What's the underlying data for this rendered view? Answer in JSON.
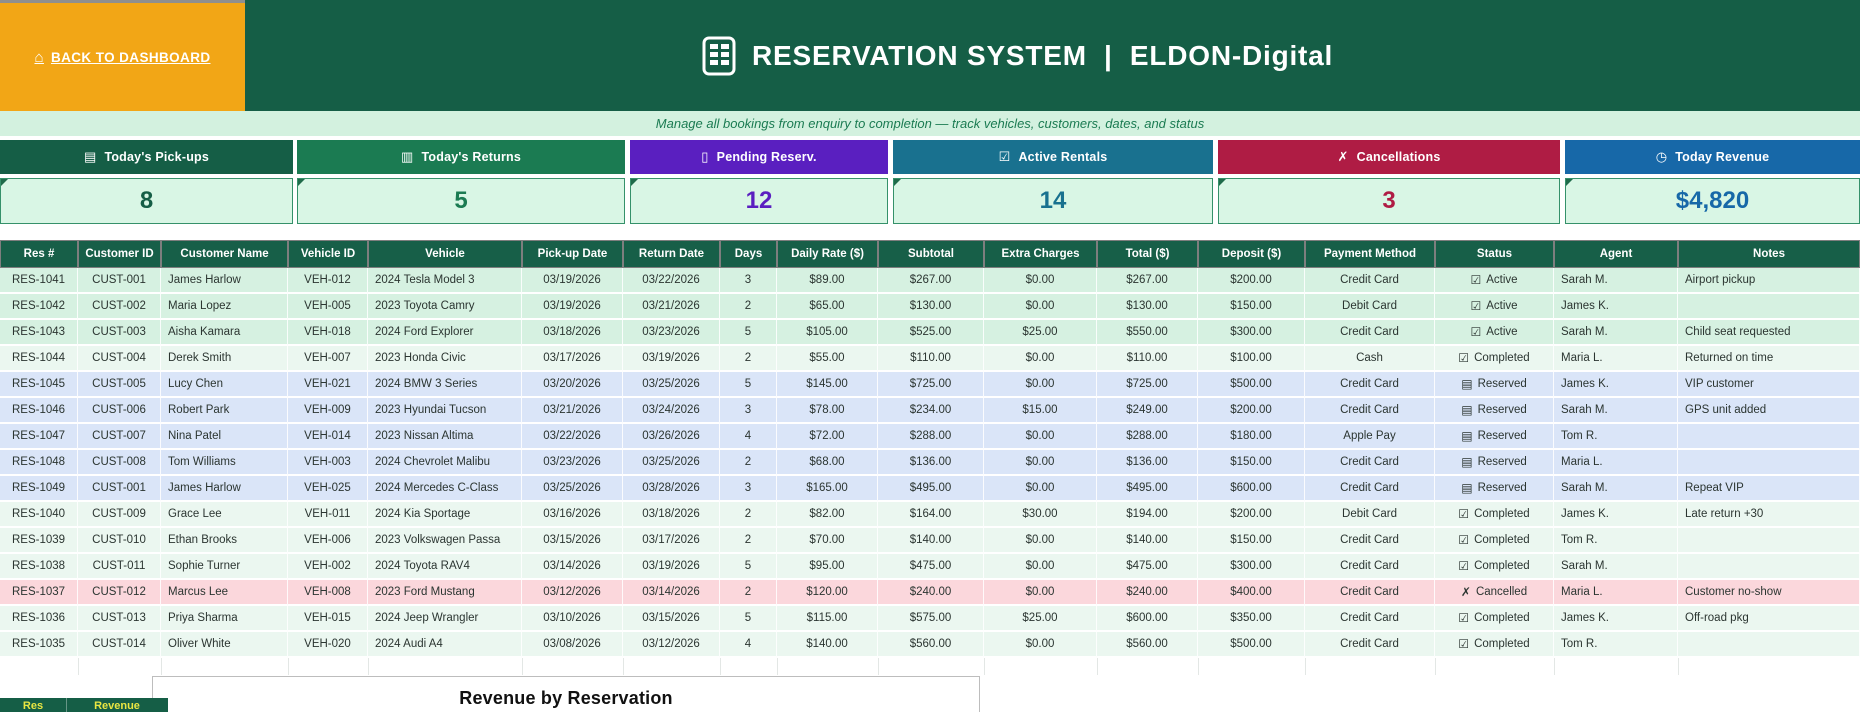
{
  "header": {
    "back_label": "BACK TO DASHBOARD",
    "title": "RESERVATION SYSTEM  |  ELDON-Digital",
    "subtitle": "Manage all bookings from enquiry to completion — track vehicles, customers, dates, and status"
  },
  "colors": {
    "topbar_green": "#155E46",
    "back_orange": "#F2A616",
    "subtitle_bg": "#D3F1DF",
    "kpi_value_bg": "#D9F6E5",
    "table_header_bg": "#175F48"
  },
  "icons": {
    "home": "⌂",
    "app": "spreadsheet-calculator-icon",
    "pickups": "▤",
    "returns": "▥",
    "pending": "▯",
    "active": "☑",
    "cancel": "✗",
    "revenue": "◷",
    "status_active": "☑",
    "status_completed": "☑",
    "status_reserved": "▤",
    "status_cancelled": "✗"
  },
  "kpis": [
    {
      "label": "Today's Pick-ups",
      "value": "8",
      "color": "#155E46",
      "icon": "pickups"
    },
    {
      "label": "Today's Returns",
      "value": "5",
      "color": "#1B7B52",
      "icon": "returns"
    },
    {
      "label": "Pending Reserv.",
      "value": "12",
      "color": "#5A1FC0",
      "icon": "pending"
    },
    {
      "label": "Active Rentals",
      "value": "14",
      "color": "#19718F",
      "icon": "active"
    },
    {
      "label": "Cancellations",
      "value": "3",
      "color": "#AF1C44",
      "icon": "cancel"
    },
    {
      "label": "Today Revenue",
      "value": "$4,820",
      "color": "#1768A8",
      "icon": "revenue"
    }
  ],
  "row_colors": {
    "Active": "#D6F1E1",
    "Completed": "#EBF7F0",
    "Reserved": "#DAE5F8",
    "Cancelled": "#FBD7DC"
  },
  "table": {
    "headers": [
      "Res #",
      "Customer ID",
      "Customer Name",
      "Vehicle ID",
      "Vehicle",
      "Pick-up Date",
      "Return Date",
      "Days",
      "Daily Rate ($)",
      "Subtotal",
      "Extra Charges",
      "Total ($)",
      "Deposit ($)",
      "Payment Method",
      "Status",
      "Agent",
      "Notes"
    ],
    "rows": [
      [
        "RES-1041",
        "CUST-001",
        "James Harlow",
        "VEH-012",
        "2024 Tesla Model 3",
        "03/19/2026",
        "03/22/2026",
        "3",
        "$89.00",
        "$267.00",
        "$0.00",
        "$267.00",
        "$200.00",
        "Credit Card",
        "Active",
        "Sarah M.",
        "Airport pickup"
      ],
      [
        "RES-1042",
        "CUST-002",
        "Maria Lopez",
        "VEH-005",
        "2023 Toyota Camry",
        "03/19/2026",
        "03/21/2026",
        "2",
        "$65.00",
        "$130.00",
        "$0.00",
        "$130.00",
        "$150.00",
        "Debit Card",
        "Active",
        "James K.",
        ""
      ],
      [
        "RES-1043",
        "CUST-003",
        "Aisha Kamara",
        "VEH-018",
        "2024 Ford Explorer",
        "03/18/2026",
        "03/23/2026",
        "5",
        "$105.00",
        "$525.00",
        "$25.00",
        "$550.00",
        "$300.00",
        "Credit Card",
        "Active",
        "Sarah M.",
        "Child seat requested"
      ],
      [
        "RES-1044",
        "CUST-004",
        "Derek Smith",
        "VEH-007",
        "2023 Honda Civic",
        "03/17/2026",
        "03/19/2026",
        "2",
        "$55.00",
        "$110.00",
        "$0.00",
        "$110.00",
        "$100.00",
        "Cash",
        "Completed",
        "Maria L.",
        "Returned on time"
      ],
      [
        "RES-1045",
        "CUST-005",
        "Lucy Chen",
        "VEH-021",
        "2024 BMW 3 Series",
        "03/20/2026",
        "03/25/2026",
        "5",
        "$145.00",
        "$725.00",
        "$0.00",
        "$725.00",
        "$500.00",
        "Credit Card",
        "Reserved",
        "James K.",
        "VIP customer"
      ],
      [
        "RES-1046",
        "CUST-006",
        "Robert Park",
        "VEH-009",
        "2023 Hyundai Tucson",
        "03/21/2026",
        "03/24/2026",
        "3",
        "$78.00",
        "$234.00",
        "$15.00",
        "$249.00",
        "$200.00",
        "Credit Card",
        "Reserved",
        "Sarah M.",
        "GPS unit added"
      ],
      [
        "RES-1047",
        "CUST-007",
        "Nina Patel",
        "VEH-014",
        "2023 Nissan Altima",
        "03/22/2026",
        "03/26/2026",
        "4",
        "$72.00",
        "$288.00",
        "$0.00",
        "$288.00",
        "$180.00",
        "Apple Pay",
        "Reserved",
        "Tom R.",
        ""
      ],
      [
        "RES-1048",
        "CUST-008",
        "Tom Williams",
        "VEH-003",
        "2024 Chevrolet Malibu",
        "03/23/2026",
        "03/25/2026",
        "2",
        "$68.00",
        "$136.00",
        "$0.00",
        "$136.00",
        "$150.00",
        "Credit Card",
        "Reserved",
        "Maria L.",
        ""
      ],
      [
        "RES-1049",
        "CUST-001",
        "James Harlow",
        "VEH-025",
        "2024 Mercedes C-Class",
        "03/25/2026",
        "03/28/2026",
        "3",
        "$165.00",
        "$495.00",
        "$0.00",
        "$495.00",
        "$600.00",
        "Credit Card",
        "Reserved",
        "Sarah M.",
        "Repeat VIP"
      ],
      [
        "RES-1040",
        "CUST-009",
        "Grace Lee",
        "VEH-011",
        "2024 Kia Sportage",
        "03/16/2026",
        "03/18/2026",
        "2",
        "$82.00",
        "$164.00",
        "$30.00",
        "$194.00",
        "$200.00",
        "Debit Card",
        "Completed",
        "James K.",
        "Late return +30"
      ],
      [
        "RES-1039",
        "CUST-010",
        "Ethan Brooks",
        "VEH-006",
        "2023 Volkswagen Passa",
        "03/15/2026",
        "03/17/2026",
        "2",
        "$70.00",
        "$140.00",
        "$0.00",
        "$140.00",
        "$150.00",
        "Credit Card",
        "Completed",
        "Tom R.",
        ""
      ],
      [
        "RES-1038",
        "CUST-011",
        "Sophie Turner",
        "VEH-002",
        "2024 Toyota RAV4",
        "03/14/2026",
        "03/19/2026",
        "5",
        "$95.00",
        "$475.00",
        "$0.00",
        "$475.00",
        "$300.00",
        "Credit Card",
        "Completed",
        "Sarah M.",
        ""
      ],
      [
        "RES-1037",
        "CUST-012",
        "Marcus Lee",
        "VEH-008",
        "2023 Ford Mustang",
        "03/12/2026",
        "03/14/2026",
        "2",
        "$120.00",
        "$240.00",
        "$0.00",
        "$240.00",
        "$400.00",
        "Credit Card",
        "Cancelled",
        "Maria L.",
        "Customer no-show"
      ],
      [
        "RES-1036",
        "CUST-013",
        "Priya Sharma",
        "VEH-015",
        "2024 Jeep Wrangler",
        "03/10/2026",
        "03/15/2026",
        "5",
        "$115.00",
        "$575.00",
        "$25.00",
        "$600.00",
        "$350.00",
        "Credit Card",
        "Completed",
        "James K.",
        "Off-road pkg"
      ],
      [
        "RES-1035",
        "CUST-014",
        "Oliver White",
        "VEH-020",
        "2024 Audi A4",
        "03/08/2026",
        "03/12/2026",
        "4",
        "$140.00",
        "$560.00",
        "$0.00",
        "$560.00",
        "$500.00",
        "Credit Card",
        "Completed",
        "Tom R.",
        ""
      ]
    ]
  },
  "bottom": {
    "chart_title": "Revenue by Reservation",
    "legend": [
      "Res",
      "Revenue"
    ]
  }
}
